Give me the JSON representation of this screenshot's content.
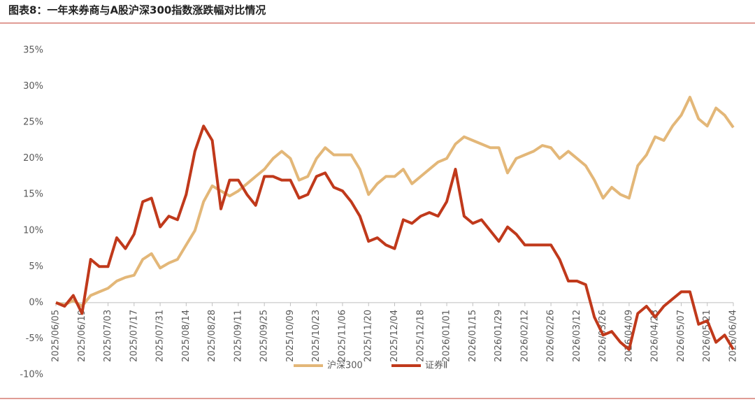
{
  "chart_data": {
    "type": "line",
    "title": "图表8：一年来券商与A股沪深300指数涨跌幅对比情况",
    "categories": [
      "2025/06/05",
      null,
      null,
      "2025/06/19",
      null,
      null,
      "2025/07/03",
      null,
      null,
      "2025/07/17",
      null,
      null,
      "2025/07/31",
      null,
      null,
      "2025/08/14",
      null,
      null,
      "2025/08/28",
      null,
      null,
      "2025/09/11",
      null,
      null,
      "2025/09/25",
      null,
      null,
      "2025/10/09",
      null,
      null,
      "2025/10/23",
      null,
      null,
      "2025/11/06",
      null,
      null,
      "2025/11/20",
      null,
      null,
      "2025/12/04",
      null,
      null,
      "2025/12/18",
      null,
      null,
      "2026/01/01",
      null,
      null,
      "2026/01/15",
      null,
      null,
      "2026/01/29",
      null,
      null,
      "2026/02/12",
      null,
      null,
      "2026/02/26",
      null,
      null,
      "2026/03/12",
      null,
      null,
      "2026/03/26",
      null,
      null,
      "2026/04/09",
      null,
      null,
      "2026/04/23",
      null,
      null,
      "2026/05/07",
      null,
      null,
      "2026/05/21",
      null,
      null,
      "2026/06/04"
    ],
    "series": [
      {
        "name": "沪深300",
        "color": "#E3B778",
        "values": [
          0,
          -0.3,
          0.3,
          -0.5,
          1,
          1.5,
          2,
          3,
          3.5,
          3.8,
          6,
          6.8,
          4.8,
          5.5,
          6,
          8,
          10,
          14,
          16.2,
          15.5,
          14.8,
          15.5,
          16.5,
          17.5,
          18.5,
          20,
          21,
          20,
          17,
          17.5,
          20,
          21.5,
          20.5,
          20.5,
          20.5,
          18.5,
          15,
          16.5,
          17.5,
          17.5,
          18.5,
          16.5,
          17.5,
          18.5,
          19.5,
          20,
          22,
          23,
          22.5,
          22,
          21.5,
          21.5,
          18,
          20,
          20.5,
          21,
          21.8,
          21.5,
          20,
          21,
          20,
          19,
          17,
          14.5,
          16,
          15,
          14.5,
          19,
          20.5,
          23,
          22.5,
          24.5,
          26,
          28.5,
          25.5,
          24.5,
          27,
          26,
          24.3
        ]
      },
      {
        "name": "证券Ⅱ",
        "color": "#C0391B",
        "values": [
          0,
          -0.5,
          1,
          -1.5,
          6,
          5,
          5,
          9,
          7.5,
          9.5,
          14,
          14.5,
          10.5,
          12,
          11.5,
          15,
          21,
          24.5,
          22.5,
          13,
          17,
          17,
          15,
          13.5,
          17.5,
          17.5,
          17,
          17,
          14.5,
          15,
          17.5,
          18,
          16,
          15.5,
          14,
          12,
          8.5,
          9,
          8,
          7.5,
          11.5,
          11,
          12,
          12.5,
          12,
          14,
          18.5,
          12,
          11,
          11.5,
          10,
          8.5,
          10.5,
          9.5,
          8,
          8,
          8,
          8,
          6,
          3,
          3,
          2.5,
          -2,
          -4.5,
          -4,
          -5.5,
          -6.5,
          -1.5,
          -0.5,
          -2,
          -0.5,
          0.5,
          1.5,
          1.5,
          -3,
          -2.5,
          -5.5,
          -4.5,
          -6.5
        ]
      }
    ],
    "ylim": [
      -10,
      35
    ],
    "yticks": [
      {
        "value": -10,
        "label": "-10%"
      },
      {
        "value": -5,
        "label": "-5%"
      },
      {
        "value": 0,
        "label": "0%"
      },
      {
        "value": 5,
        "label": "5%"
      },
      {
        "value": 10,
        "label": "10%"
      },
      {
        "value": 15,
        "label": "15%"
      },
      {
        "value": 20,
        "label": "20%"
      },
      {
        "value": 25,
        "label": "25%"
      },
      {
        "value": 30,
        "label": "30%"
      },
      {
        "value": 35,
        "label": "35%"
      }
    ],
    "grid": false
  }
}
